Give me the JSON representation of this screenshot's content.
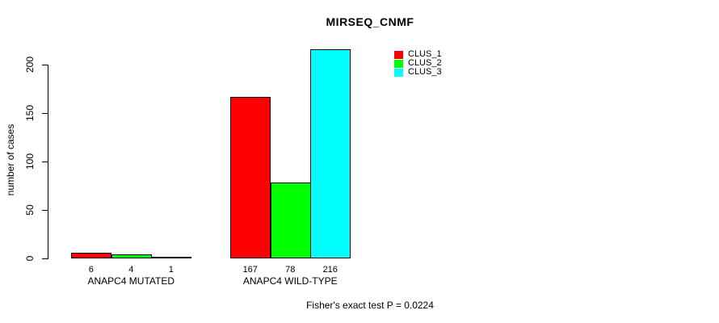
{
  "chart_data": {
    "type": "bar",
    "title": "MIRSEQ_CNMF",
    "ylabel": "number of cases",
    "xlabel": "",
    "categories": [
      "ANAPC4 MUTATED",
      "ANAPC4 WILD-TYPE"
    ],
    "series": [
      {
        "name": "CLUS_1",
        "color": "#ff0000",
        "values": [
          6,
          167
        ]
      },
      {
        "name": "CLUS_2",
        "color": "#00ff00",
        "values": [
          4,
          78
        ]
      },
      {
        "name": "CLUS_3",
        "color": "#00ffff",
        "values": [
          1,
          216
        ]
      }
    ],
    "yticks": [
      0,
      50,
      100,
      150,
      200
    ],
    "ylim": [
      0,
      220
    ],
    "grid": false,
    "bar_value_labels": true,
    "legend_position": "inner-top-right",
    "annotation": "Fisher's exact test P = 0.0224"
  }
}
